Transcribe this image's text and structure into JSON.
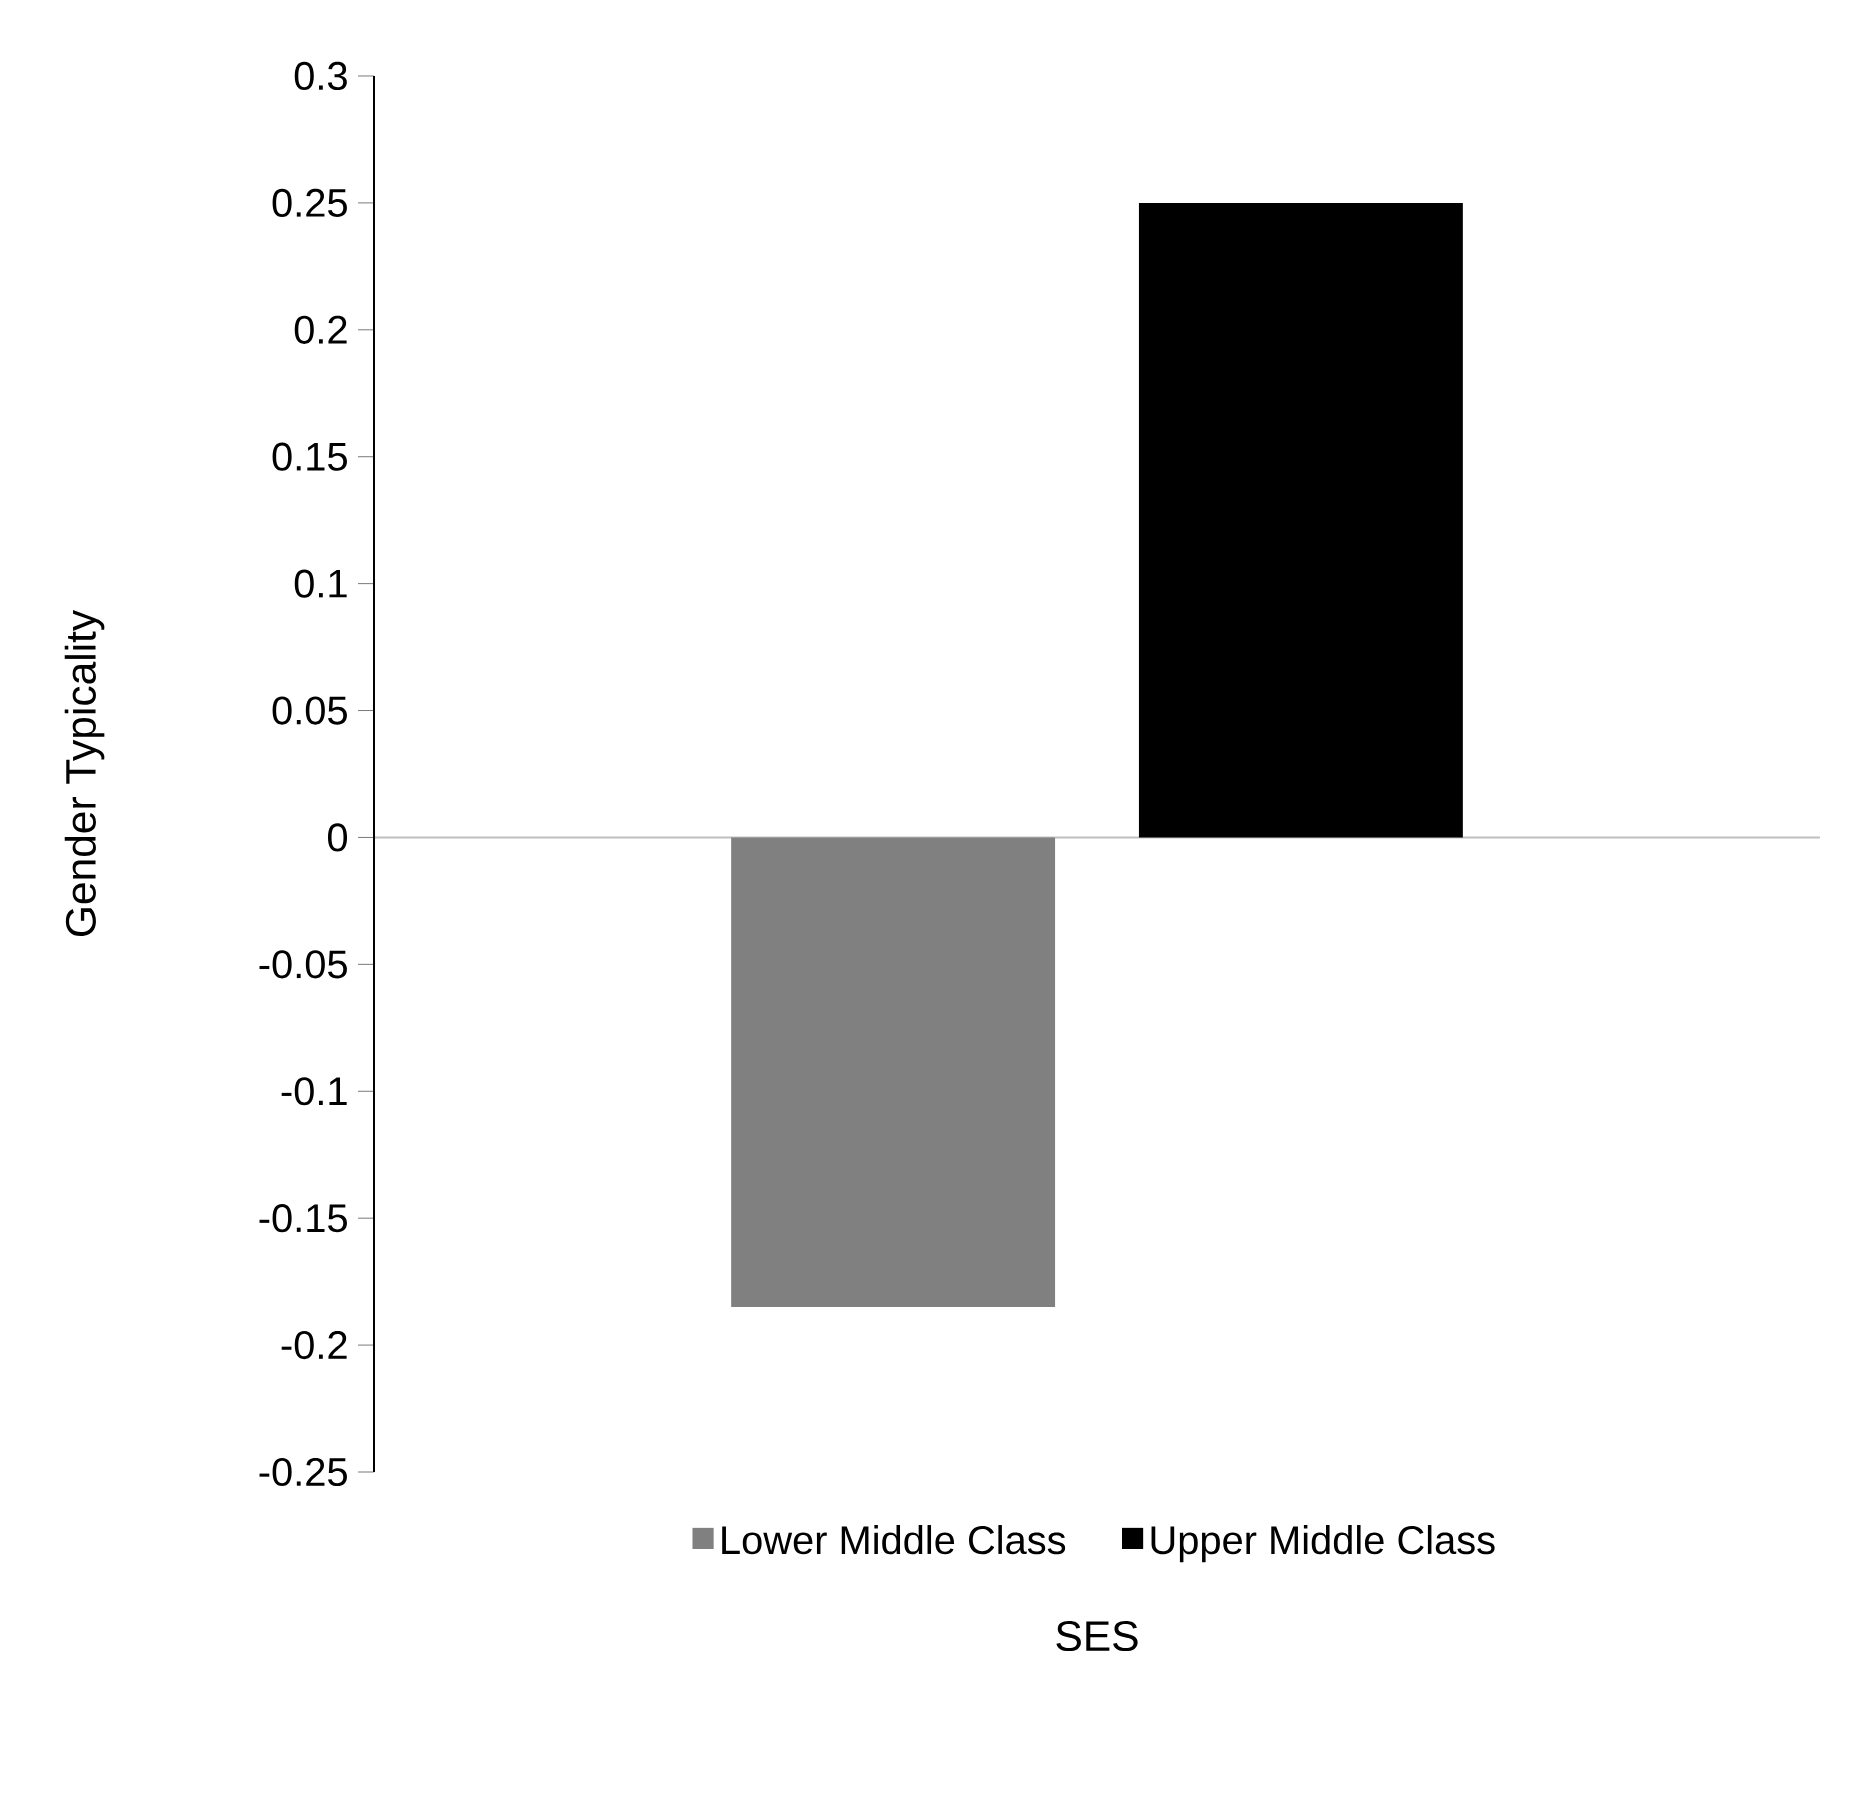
{
  "chart_data": {
    "type": "bar",
    "categories": [
      null
    ],
    "series": [
      {
        "name": "Lower Middle Class",
        "color": "#808080",
        "values": [
          -0.185
        ]
      },
      {
        "name": "Upper Middle Class",
        "color": "#000000",
        "values": [
          0.25
        ]
      }
    ],
    "xlabel": "SES",
    "ylabel": "Gender Typicality",
    "ylim": [
      -0.25,
      0.3
    ],
    "yticks": [
      -0.25,
      -0.2,
      -0.15,
      -0.1,
      -0.05,
      0,
      0.05,
      0.1,
      0.15,
      0.2,
      0.25,
      0.3
    ],
    "legend": "bottom"
  }
}
